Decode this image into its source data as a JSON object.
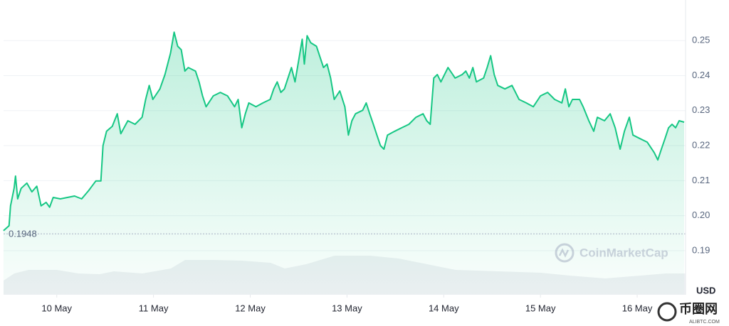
{
  "chart_data": {
    "type": "line",
    "x": [
      9.449,
      9.507,
      9.522,
      9.559,
      9.574,
      9.596,
      9.632,
      9.691,
      9.743,
      9.794,
      9.838,
      9.89,
      9.926,
      9.963,
      10.037,
      10.11,
      10.184,
      10.257,
      10.331,
      10.404,
      10.456,
      10.478,
      10.515,
      10.574,
      10.625,
      10.662,
      10.735,
      10.809,
      10.882,
      10.919,
      10.956,
      10.993,
      11.066,
      11.118,
      11.176,
      11.213,
      11.25,
      11.287,
      11.324,
      11.36,
      11.434,
      11.471,
      11.507,
      11.544,
      11.618,
      11.691,
      11.765,
      11.838,
      11.875,
      11.912,
      11.949,
      11.985,
      12.059,
      12.132,
      12.206,
      12.243,
      12.279,
      12.316,
      12.353,
      12.39,
      12.426,
      12.463,
      12.5,
      12.537,
      12.559,
      12.588,
      12.625,
      12.684,
      12.721,
      12.757,
      12.794,
      12.831,
      12.868,
      12.926,
      12.978,
      13.015,
      13.051,
      13.088,
      13.162,
      13.199,
      13.235,
      13.272,
      13.309,
      13.346,
      13.382,
      13.419,
      13.493,
      13.566,
      13.64,
      13.713,
      13.787,
      13.824,
      13.86,
      13.897,
      13.934,
      13.971,
      14.044,
      14.118,
      14.191,
      14.228,
      14.265,
      14.301,
      14.338,
      14.412,
      14.449,
      14.485,
      14.522,
      14.559,
      14.632,
      14.706,
      14.779,
      14.853,
      14.926,
      15.0,
      15.074,
      15.147,
      15.221,
      15.257,
      15.294,
      15.331,
      15.404,
      15.441,
      15.5,
      15.551,
      15.588,
      15.662,
      15.721,
      15.772,
      15.824,
      15.868,
      15.919,
      15.956,
      16.029,
      16.103,
      16.176,
      16.213,
      16.25,
      16.287,
      16.324,
      16.36,
      16.397,
      16.434,
      16.485
    ],
    "values": [
      0.1957,
      0.1971,
      0.2028,
      0.2078,
      0.2113,
      0.2048,
      0.2078,
      0.2093,
      0.2068,
      0.2084,
      0.2028,
      0.2038,
      0.2024,
      0.2052,
      0.2048,
      0.2052,
      0.2056,
      0.2048,
      0.2072,
      0.2099,
      0.2099,
      0.22,
      0.2241,
      0.2255,
      0.2291,
      0.2234,
      0.2271,
      0.2261,
      0.2281,
      0.2332,
      0.2372,
      0.2332,
      0.2362,
      0.2403,
      0.2464,
      0.2524,
      0.2484,
      0.2474,
      0.2413,
      0.2423,
      0.2413,
      0.2382,
      0.2342,
      0.2311,
      0.2342,
      0.2352,
      0.2342,
      0.2311,
      0.2332,
      0.2251,
      0.2291,
      0.2322,
      0.2311,
      0.2322,
      0.2332,
      0.2362,
      0.2382,
      0.2352,
      0.2362,
      0.2393,
      0.2423,
      0.2382,
      0.2443,
      0.2504,
      0.2433,
      0.2514,
      0.2494,
      0.2484,
      0.2453,
      0.2423,
      0.2433,
      0.2393,
      0.2332,
      0.2356,
      0.2311,
      0.223,
      0.2271,
      0.2291,
      0.2301,
      0.2322,
      0.2291,
      0.2261,
      0.223,
      0.22,
      0.219,
      0.223,
      0.2241,
      0.2251,
      0.2261,
      0.2281,
      0.2291,
      0.2271,
      0.2261,
      0.2393,
      0.2403,
      0.2382,
      0.2423,
      0.2393,
      0.2403,
      0.2413,
      0.2393,
      0.2423,
      0.2382,
      0.2393,
      0.2423,
      0.2457,
      0.2403,
      0.2372,
      0.2362,
      0.2372,
      0.2332,
      0.2322,
      0.2311,
      0.2342,
      0.2352,
      0.2332,
      0.2322,
      0.2362,
      0.2311,
      0.2332,
      0.2332,
      0.2311,
      0.2271,
      0.2241,
      0.2281,
      0.2271,
      0.2291,
      0.2251,
      0.219,
      0.2241,
      0.2281,
      0.223,
      0.222,
      0.221,
      0.218,
      0.2159,
      0.219,
      0.222,
      0.2251,
      0.2261,
      0.2251,
      0.2271,
      0.2267
    ],
    "color": "#16c784",
    "xlim": [
      9.45,
      16.5
    ],
    "xticks": [
      {
        "value": 10,
        "label": "10 May"
      },
      {
        "value": 11,
        "label": "11 May"
      },
      {
        "value": 12,
        "label": "12 May"
      },
      {
        "value": 13,
        "label": "13 May"
      },
      {
        "value": 14,
        "label": "14 May"
      },
      {
        "value": 15,
        "label": "15 May"
      },
      {
        "value": 16,
        "label": "16 May"
      }
    ],
    "ylim": [
      0.1774,
      0.2616
    ],
    "yticks": [
      0.19,
      {
        "value": 0.2,
        "label": "0.20"
      },
      0.21,
      0.22,
      0.23,
      0.24,
      0.25
    ],
    "grid": true,
    "baseline": 0.1948,
    "y_axis_label": "USD",
    "watermark": "CoinMarketCap"
  },
  "site_badge": {
    "name": "币圈网",
    "url": "ALIBTC.COM"
  }
}
